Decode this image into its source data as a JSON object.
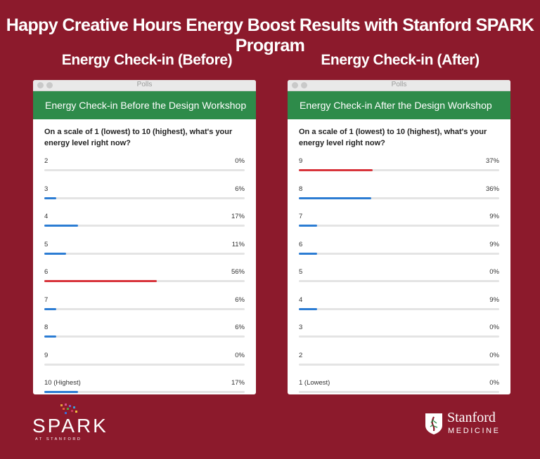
{
  "title": "Happy Creative Hours Energy Boost Results with Stanford SPARK Program",
  "colors": {
    "background": "#8c1a2c",
    "header_green": "#2e8b4a",
    "bar_blue": "#2b7cd3",
    "bar_red": "#d8343b",
    "track": "#e4e4e4"
  },
  "panels": [
    {
      "heading": "Energy Check-in (Before)",
      "window_title": "Polls",
      "poll_title": "Energy Check-in Before the Design Workshop",
      "question": "On a scale of 1 (lowest) to 10 (highest), what's your energy level right now?",
      "options": [
        {
          "label": "2",
          "percent": 0,
          "percent_label": "0%",
          "highlight": false
        },
        {
          "label": "3",
          "percent": 6,
          "percent_label": "6%",
          "highlight": false
        },
        {
          "label": "4",
          "percent": 17,
          "percent_label": "17%",
          "highlight": false
        },
        {
          "label": "5",
          "percent": 11,
          "percent_label": "11%",
          "highlight": false
        },
        {
          "label": "6",
          "percent": 56,
          "percent_label": "56%",
          "highlight": true
        },
        {
          "label": "7",
          "percent": 6,
          "percent_label": "6%",
          "highlight": false
        },
        {
          "label": "8",
          "percent": 6,
          "percent_label": "6%",
          "highlight": false
        },
        {
          "label": "9",
          "percent": 0,
          "percent_label": "0%",
          "highlight": false
        },
        {
          "label": "10 (Highest)",
          "percent": 17,
          "percent_label": "17%",
          "highlight": false
        }
      ]
    },
    {
      "heading": "Energy Check-in (After)",
      "window_title": "Polls",
      "poll_title": "Energy Check-in After the Design Workshop",
      "question": "On a scale of 1 (lowest) to 10 (highest), what's your energy level right now?",
      "options": [
        {
          "label": "9",
          "percent": 37,
          "percent_label": "37%",
          "highlight": true
        },
        {
          "label": "8",
          "percent": 36,
          "percent_label": "36%",
          "highlight": false
        },
        {
          "label": "7",
          "percent": 9,
          "percent_label": "9%",
          "highlight": false
        },
        {
          "label": "6",
          "percent": 9,
          "percent_label": "9%",
          "highlight": false
        },
        {
          "label": "5",
          "percent": 0,
          "percent_label": "0%",
          "highlight": false
        },
        {
          "label": "4",
          "percent": 9,
          "percent_label": "9%",
          "highlight": false
        },
        {
          "label": "3",
          "percent": 0,
          "percent_label": "0%",
          "highlight": false
        },
        {
          "label": "2",
          "percent": 0,
          "percent_label": "0%",
          "highlight": false
        },
        {
          "label": "1 (Lowest)",
          "percent": 0,
          "percent_label": "0%",
          "highlight": false
        }
      ]
    }
  ],
  "logos": {
    "spark": {
      "name": "SPARK",
      "subtitle": "AT STANFORD"
    },
    "stanford": {
      "name": "Stanford",
      "subtitle": "MEDICINE"
    }
  }
}
